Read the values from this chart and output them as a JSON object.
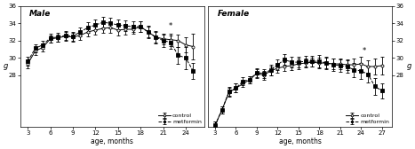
{
  "male": {
    "title": "Male",
    "x_control": [
      3,
      4,
      5,
      6,
      7,
      8,
      9,
      10,
      11,
      12,
      13,
      14,
      15,
      16,
      17,
      18,
      19,
      20,
      21,
      22,
      23,
      24,
      25
    ],
    "y_control": [
      29.3,
      30.8,
      31.2,
      32.2,
      32.3,
      32.5,
      32.4,
      32.6,
      33.0,
      33.2,
      33.4,
      33.5,
      33.2,
      33.3,
      33.3,
      33.6,
      33.0,
      32.4,
      32.2,
      32.1,
      32.0,
      31.5,
      31.3
    ],
    "e_control": [
      0.5,
      0.5,
      0.5,
      0.4,
      0.4,
      0.5,
      0.5,
      0.5,
      0.5,
      0.5,
      0.5,
      0.6,
      0.6,
      0.6,
      0.5,
      0.6,
      0.6,
      0.6,
      0.6,
      0.7,
      0.7,
      0.9,
      1.5
    ],
    "x_metformin": [
      3,
      4,
      5,
      6,
      7,
      8,
      9,
      10,
      11,
      12,
      13,
      14,
      15,
      16,
      17,
      18,
      19,
      20,
      21,
      22,
      23,
      24,
      25
    ],
    "y_metformin": [
      29.6,
      31.1,
      31.5,
      32.3,
      32.4,
      32.6,
      32.5,
      33.0,
      33.5,
      33.8,
      34.1,
      34.0,
      33.8,
      33.7,
      33.6,
      33.6,
      33.0,
      32.4,
      32.0,
      31.8,
      30.3,
      30.0,
      28.5
    ],
    "e_metformin": [
      0.5,
      0.5,
      0.5,
      0.5,
      0.5,
      0.5,
      0.5,
      0.5,
      0.6,
      0.6,
      0.6,
      0.6,
      0.6,
      0.6,
      0.6,
      0.6,
      0.7,
      0.7,
      0.7,
      0.8,
      1.0,
      1.3,
      0.9
    ],
    "star_x": 22.0,
    "star_y": 33.2,
    "xlim": [
      2.0,
      26.5
    ],
    "ylim": [
      22,
      36
    ],
    "yticks": [
      28,
      30,
      32,
      34,
      36
    ],
    "xticks": [
      3,
      6,
      9,
      12,
      15,
      18,
      21,
      24
    ],
    "xlabel": "age, months",
    "ylabel": "g"
  },
  "female": {
    "title": "Female",
    "x_control": [
      3,
      4,
      5,
      6,
      7,
      8,
      9,
      10,
      11,
      12,
      13,
      14,
      15,
      16,
      17,
      18,
      19,
      20,
      21,
      22,
      23,
      24,
      25,
      26,
      27
    ],
    "y_control": [
      22.2,
      24.0,
      26.0,
      26.5,
      27.0,
      27.5,
      28.2,
      28.0,
      28.5,
      28.8,
      29.0,
      29.1,
      29.3,
      29.4,
      29.5,
      29.4,
      29.4,
      29.3,
      29.3,
      29.2,
      29.2,
      29.3,
      29.0,
      29.0,
      29.1
    ],
    "e_control": [
      0.4,
      0.4,
      0.5,
      0.5,
      0.4,
      0.4,
      0.5,
      0.5,
      0.5,
      0.5,
      0.5,
      0.5,
      0.6,
      0.5,
      0.5,
      0.6,
      0.6,
      0.6,
      0.6,
      0.6,
      0.7,
      0.8,
      0.7,
      0.9,
      1.0
    ],
    "x_metformin": [
      3,
      4,
      5,
      6,
      7,
      8,
      9,
      10,
      11,
      12,
      13,
      14,
      15,
      16,
      17,
      18,
      19,
      20,
      21,
      22,
      23,
      24,
      25,
      26,
      27
    ],
    "y_metformin": [
      22.2,
      24.0,
      26.1,
      26.5,
      27.3,
      27.5,
      28.3,
      28.2,
      28.6,
      29.2,
      29.8,
      29.5,
      29.5,
      29.6,
      29.6,
      29.6,
      29.4,
      29.2,
      29.1,
      29.0,
      28.6,
      28.5,
      28.1,
      26.7,
      26.2
    ],
    "e_metformin": [
      0.4,
      0.4,
      0.5,
      0.5,
      0.5,
      0.4,
      0.5,
      0.5,
      0.6,
      0.6,
      0.6,
      0.6,
      0.6,
      0.6,
      0.6,
      0.7,
      0.7,
      0.7,
      0.7,
      0.7,
      0.8,
      0.9,
      0.9,
      1.0,
      0.9
    ],
    "star_x": 24.5,
    "star_y": 30.3,
    "xlim": [
      2.0,
      28.5
    ],
    "ylim": [
      22,
      36
    ],
    "yticks": [
      28,
      30,
      32,
      34,
      36
    ],
    "xticks": [
      3,
      6,
      9,
      12,
      15,
      18,
      21,
      24,
      27
    ],
    "xlabel": "age, months",
    "ylabel": "g"
  },
  "bg_color": "#ffffff",
  "line_color": "#000000"
}
